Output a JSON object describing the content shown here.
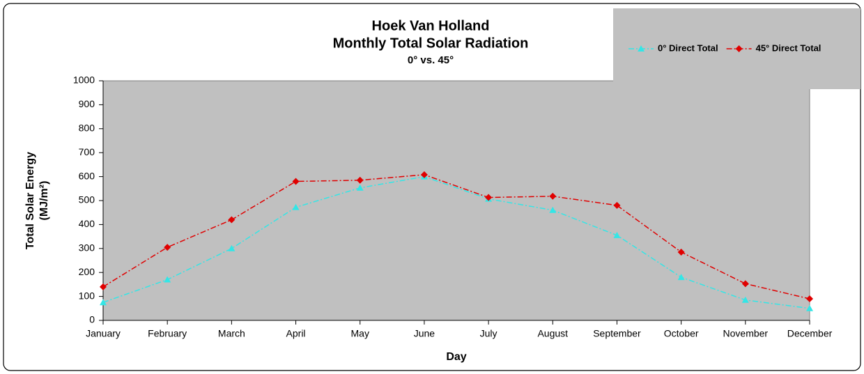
{
  "chart_data": {
    "type": "line",
    "title": [
      "Hoek Van Holland",
      "Monthly Total Solar Radiation"
    ],
    "subtitle": "0° vs. 45°",
    "x_label": "Day",
    "y_label": [
      "Total Solar Energy",
      "(MJ/m²)"
    ],
    "categories": [
      "January",
      "February",
      "March",
      "April",
      "May",
      "June",
      "July",
      "August",
      "September",
      "October",
      "November",
      "December"
    ],
    "series": [
      {
        "name": "0° Direct Total",
        "color": "#33e6e6",
        "marker": "triangle",
        "values": [
          75,
          170,
          300,
          472,
          553,
          600,
          507,
          460,
          355,
          180,
          85,
          50
        ]
      },
      {
        "name": "45° Direct Total",
        "color": "#e00000",
        "marker": "diamond",
        "values": [
          140,
          305,
          420,
          580,
          585,
          608,
          513,
          518,
          480,
          285,
          153,
          90
        ]
      }
    ],
    "ylim": [
      0,
      1000
    ],
    "yticks": [
      0,
      100,
      200,
      300,
      400,
      500,
      600,
      700,
      800,
      900,
      1000
    ],
    "grid": false,
    "legend": "top-right",
    "plot_background": "#c0c0c0"
  }
}
